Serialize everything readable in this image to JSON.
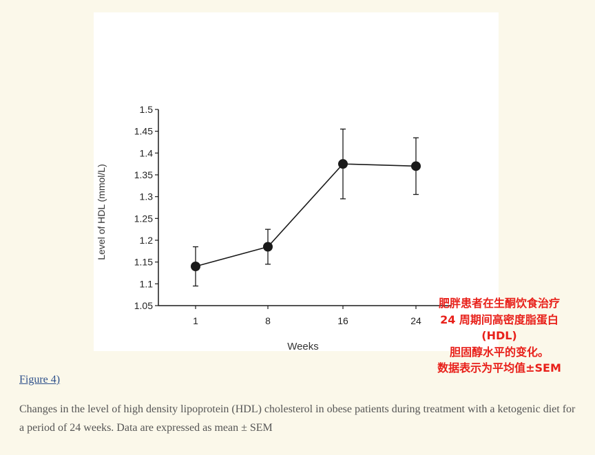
{
  "chart_data": {
    "type": "line",
    "xlabel": "Weeks",
    "ylabel": "Level of HDL (mmol/L)",
    "categories": [
      "1",
      "8",
      "16",
      "24"
    ],
    "yticks": [
      "1.05",
      "1.1",
      "1.15",
      "1.2",
      "1.25",
      "1.3",
      "1.35",
      "1.4",
      "1.45",
      "1.5"
    ],
    "ylim": [
      1.05,
      1.5
    ],
    "series": [
      {
        "values": [
          1.14,
          1.185,
          1.375,
          1.37
        ],
        "error": [
          0.045,
          0.04,
          0.08,
          0.065
        ]
      }
    ],
    "grid": false,
    "colors": {
      "line": "#1a1a1a",
      "marker": "#1a1a1a"
    }
  },
  "annotation": {
    "lines": [
      "肥胖患者在生酮饮食治疗",
      "24 周期间高密度脂蛋白",
      "(HDL)",
      "胆固醇水平的变化。",
      "数据表示为平均值±SEM"
    ],
    "color": "#e8201a"
  },
  "figure_link": "Figure 4)",
  "caption": "Changes in the level of high density lipoprotein (HDL) cholesterol in obese patients during treatment with a ketogenic diet for a period of 24 weeks. Data are expressed as mean ± SEM"
}
